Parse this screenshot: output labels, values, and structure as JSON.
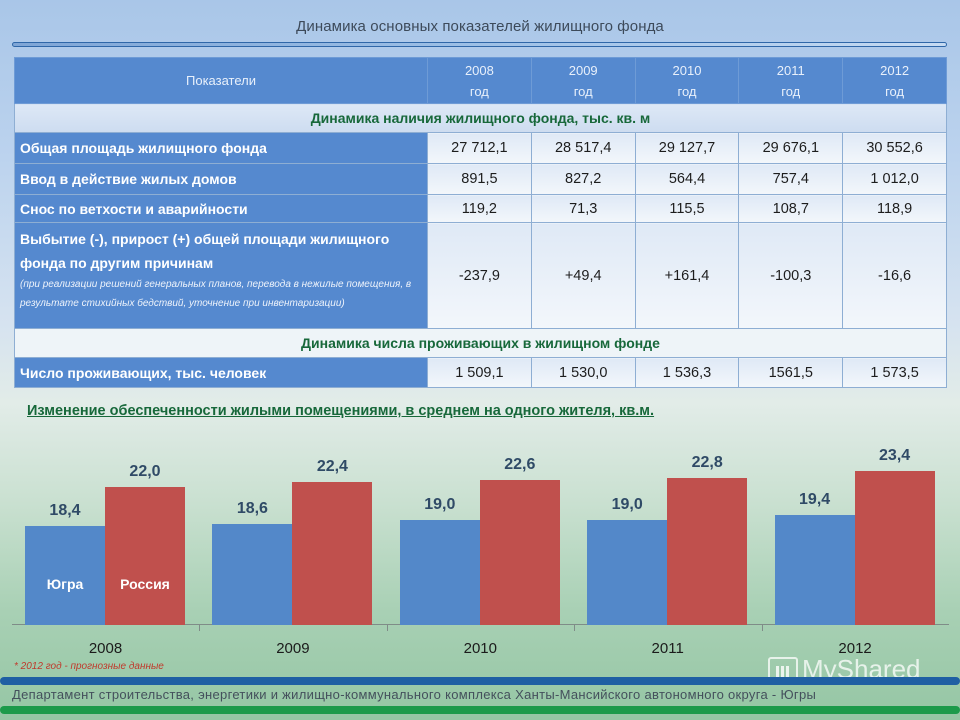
{
  "slide": {
    "title": "Динамика основных показателей жилищного фонда"
  },
  "table": {
    "header": {
      "indicator_label": "Показатели",
      "years": [
        {
          "year": "2008",
          "unit": "год"
        },
        {
          "year": "2009",
          "unit": "год"
        },
        {
          "year": "2010",
          "unit": "год"
        },
        {
          "year": "2011",
          "unit": "год"
        },
        {
          "year": "2012",
          "unit": "год"
        }
      ]
    },
    "section1_title": "Динамика наличия жилищного фонда, тыс. кв. м",
    "rows1": [
      {
        "label": "Общая площадь жилищного фонда",
        "values": [
          "27 712,1",
          "28 517,4",
          "29 127,7",
          "29 676,1",
          "30 552,6"
        ]
      },
      {
        "label": "Ввод в действие жилых домов",
        "values": [
          "891,5",
          "827,2",
          "564,4",
          "757,4",
          "1 012,0"
        ]
      },
      {
        "label": "Снос по ветхости и аварийности",
        "values": [
          "119,2",
          "71,3",
          "115,5",
          "108,7",
          "118,9"
        ]
      },
      {
        "label": "Выбытие (-), прирост (+) общей площади жилищного фонда по другим причинам",
        "note": "(при реализации решений генеральных планов, перевода в нежилые помещения,  в результате стихийных бедствий, уточнение при инвентаризации)",
        "values": [
          "-237,9",
          "+49,4",
          "+161,4",
          "-100,3",
          "-16,6"
        ]
      }
    ],
    "section2_title": "Динамика числа проживающих в жилищном фонде",
    "rows2": [
      {
        "label": "Число проживающих, тыс. человек",
        "values": [
          "1 509,1",
          "1 530,0",
          "1 536,3",
          "1561,5",
          "1 573,5"
        ]
      }
    ]
  },
  "chart_data": {
    "type": "bar",
    "title": "Изменение обеспеченности жилыми помещениями, в среднем на одного жителя, кв.м.",
    "xlabel": "",
    "ylabel": "",
    "categories": [
      "2008",
      "2009",
      "2010",
      "2011",
      "2012"
    ],
    "series": [
      {
        "name": "Югра",
        "color": "#5388c9",
        "values": [
          18.4,
          18.6,
          19.0,
          19.0,
          19.4
        ],
        "labels": [
          "18,4",
          "18,6",
          "19,0",
          "19,0",
          "19,4"
        ]
      },
      {
        "name": "Россия",
        "color": "#c0504d",
        "values": [
          22.0,
          22.4,
          22.6,
          22.8,
          23.4
        ],
        "labels": [
          "22,0",
          "22,4",
          "22,6",
          "22,8",
          "23,4"
        ]
      }
    ],
    "ylim": [
      0,
      26
    ],
    "grid": false,
    "legend_position": "inside first group bars",
    "annotations": [
      "* 2012 год - прогнозные данные"
    ]
  },
  "footer": {
    "footnote": "* 2012 год - прогнозные данные",
    "department": "Департамент строительства, энергетики и жилищно-коммунального комплекса  Ханты-Мансийского автономного округа - Югры",
    "watermark": "MyShared"
  }
}
